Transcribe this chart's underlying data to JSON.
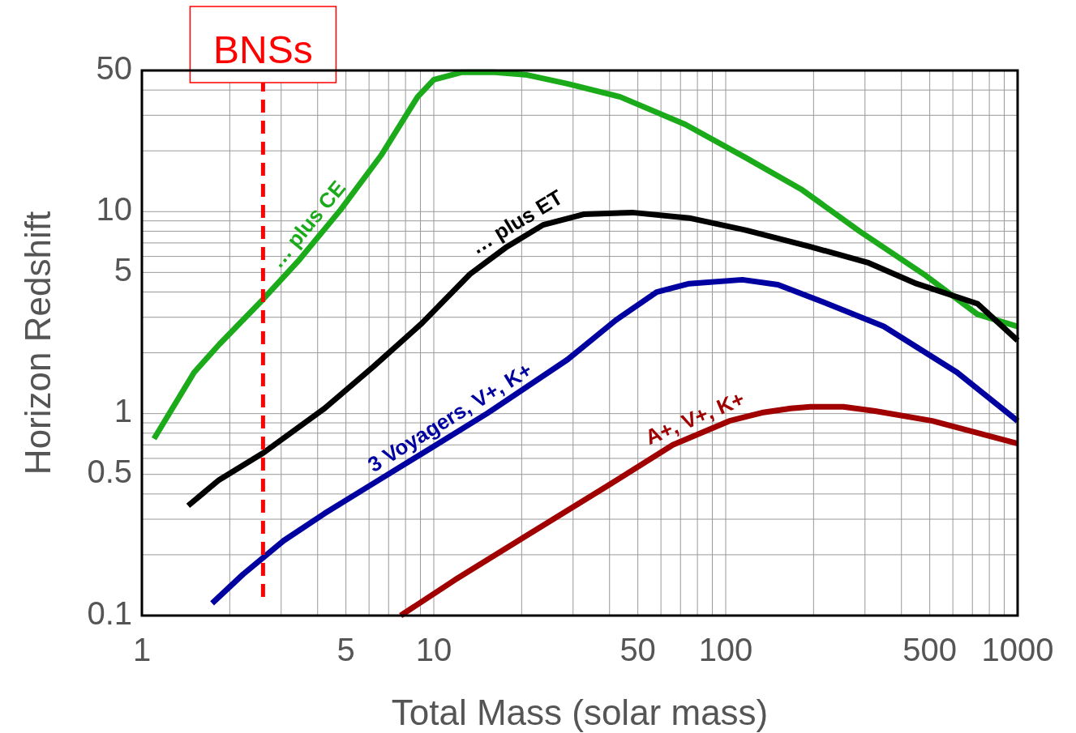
{
  "chart_data": {
    "type": "line",
    "xlabel": "Total Mass (solar mass)",
    "ylabel": "Horizon Redshift",
    "log": "xy",
    "grid": true,
    "xlim": [
      1,
      1000
    ],
    "ylim": [
      0.1,
      50
    ],
    "xticks": [
      1,
      5,
      10,
      50,
      100,
      500,
      1000
    ],
    "yticks": [
      0.1,
      0.5,
      1,
      5,
      10,
      50
    ],
    "line_style": "solid",
    "marker": "none",
    "ref_lines": [
      {
        "axis": "x",
        "value": 2.6,
        "label": "BNSs",
        "color": "#ff0000",
        "line_style": "dashed"
      }
    ],
    "series": [
      {
        "name": "… plus CE",
        "color": "#1aaa1a",
        "x": [
          1.1,
          1.51,
          1.84,
          2.61,
          3.47,
          4.79,
          6.6,
          8.8,
          10,
          12.5,
          16.2,
          20.9,
          28.7,
          43.5,
          72.8,
          117,
          183,
          287,
          477,
          729,
          1000
        ],
        "values": [
          0.75,
          1.6,
          2.2,
          3.7,
          5.8,
          10.2,
          19,
          37,
          45,
          49,
          49,
          47.5,
          43,
          37,
          27,
          18.5,
          12.8,
          8,
          4.9,
          3.1,
          2.7
        ]
      },
      {
        "name": "… plus ET",
        "color": "#000000",
        "x": [
          1.44,
          1.84,
          2.61,
          4.22,
          6.19,
          9.1,
          13.3,
          17.8,
          23.7,
          32.6,
          47.9,
          75,
          117,
          195,
          306,
          450,
          729,
          1000
        ],
        "values": [
          0.35,
          0.47,
          0.64,
          1.06,
          1.7,
          2.8,
          4.9,
          6.7,
          8.6,
          9.7,
          9.9,
          9.3,
          8.1,
          6.7,
          5.6,
          4.4,
          3.5,
          2.3
        ]
      },
      {
        "name": "3 Voyagers, V+, K+",
        "color": "#0000a0",
        "x": [
          1.74,
          2.22,
          3.06,
          4.22,
          6.19,
          9.7,
          15.2,
          28.7,
          42,
          58,
          75,
          114,
          151,
          223,
          348,
          620,
          1000
        ],
        "values": [
          0.115,
          0.16,
          0.235,
          0.32,
          0.45,
          0.67,
          1.0,
          1.85,
          2.9,
          4.0,
          4.4,
          4.6,
          4.35,
          3.5,
          2.7,
          1.6,
          0.92
        ]
      },
      {
        "name": "A+, V+, K+",
        "color": "#a00000",
        "x": [
          7.7,
          11.8,
          20.9,
          39.5,
          65.9,
          103,
          133,
          167,
          195,
          253,
          325,
          510,
          1000
        ],
        "values": [
          0.1,
          0.15,
          0.25,
          0.44,
          0.7,
          0.92,
          1.01,
          1.06,
          1.08,
          1.08,
          1.03,
          0.92,
          0.71
        ]
      }
    ]
  }
}
